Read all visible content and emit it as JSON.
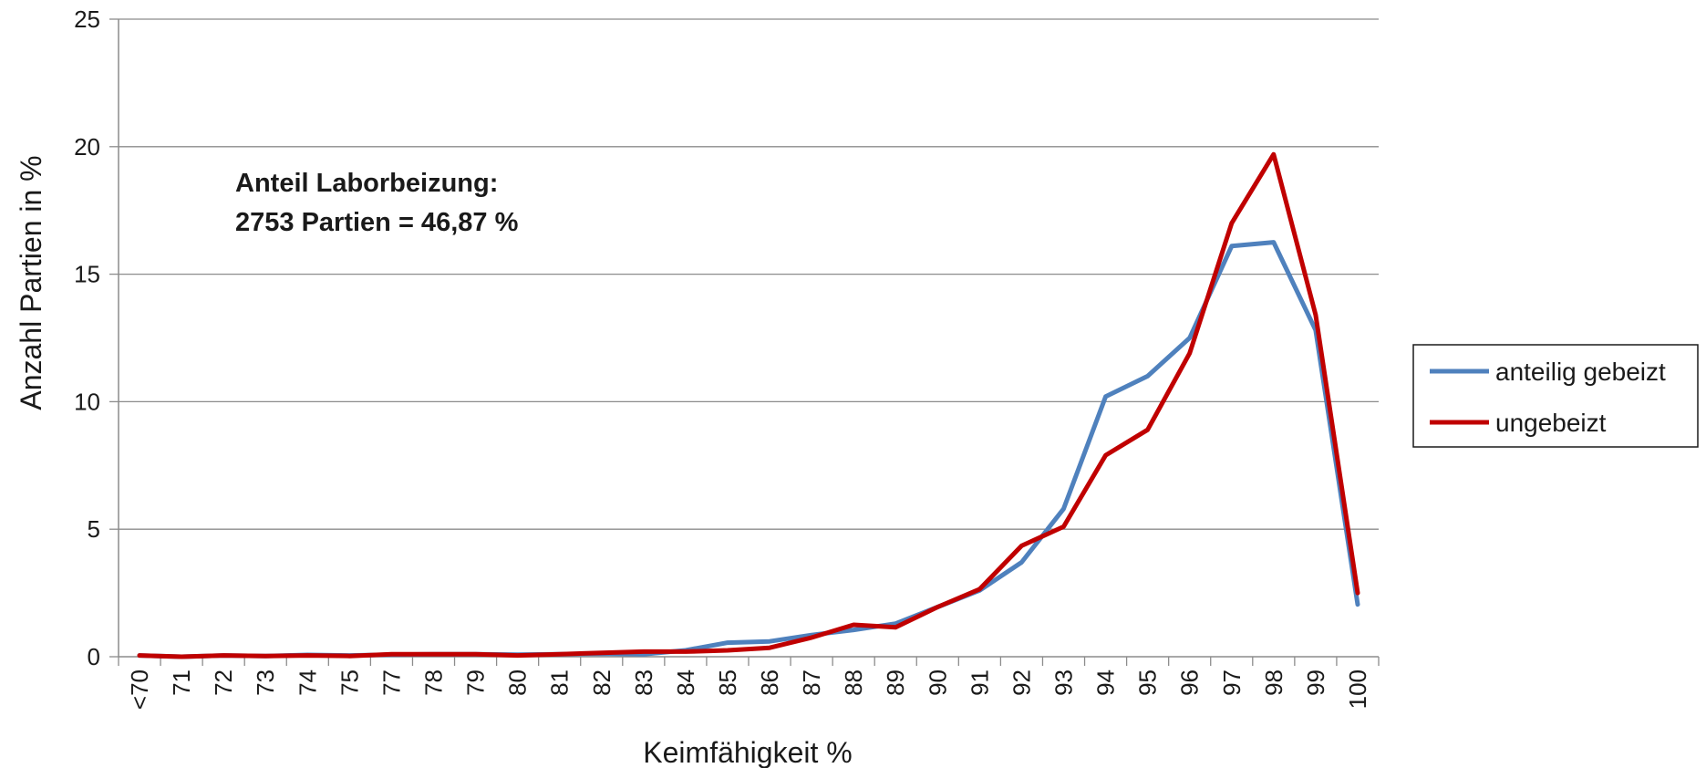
{
  "chart_data": {
    "type": "line",
    "xlabel": "Keimfähigkeit %",
    "ylabel": "Anzahl Partien in %",
    "ylim": [
      0,
      25
    ],
    "yticks": [
      "0",
      "5",
      "10",
      "15",
      "20",
      "25"
    ],
    "grid": "horizontal",
    "legend_position": "right",
    "categories": [
      "<70",
      "71",
      "72",
      "73",
      "74",
      "75",
      "77",
      "78",
      "79",
      "80",
      "81",
      "82",
      "83",
      "84",
      "85",
      "86",
      "87",
      "88",
      "89",
      "90",
      "91",
      "92",
      "93",
      "94",
      "95",
      "96",
      "97",
      "98",
      "99",
      "100"
    ],
    "series": [
      {
        "name": "anteilig gebeizt",
        "color": "#4F81BD",
        "values": [
          0.05,
          0.0,
          0.05,
          0.03,
          0.07,
          0.05,
          0.08,
          0.1,
          0.1,
          0.08,
          0.1,
          0.12,
          0.1,
          0.25,
          0.55,
          0.6,
          0.85,
          1.05,
          1.3,
          1.95,
          2.6,
          3.7,
          5.8,
          10.2,
          11.0,
          12.5,
          16.1,
          16.25,
          12.8,
          2.05
        ]
      },
      {
        "name": "ungebeizt",
        "color": "#C00000",
        "values": [
          0.05,
          0.0,
          0.05,
          0.03,
          0.05,
          0.03,
          0.1,
          0.1,
          0.1,
          0.05,
          0.1,
          0.15,
          0.2,
          0.2,
          0.25,
          0.35,
          0.75,
          1.25,
          1.15,
          1.95,
          2.65,
          4.35,
          5.1,
          7.9,
          8.9,
          11.9,
          17.0,
          19.7,
          13.4,
          2.5
        ]
      }
    ],
    "annotation": [
      "Anteil Laborbeizung:",
      "2753 Partien = 46,87 %"
    ]
  }
}
